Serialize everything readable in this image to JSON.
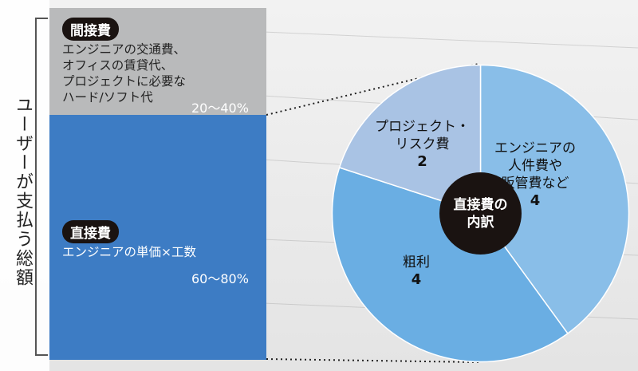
{
  "y_axis_label": "ユーザーが支払う総額",
  "stacked_bar": {
    "segments": [
      {
        "name": "間接費",
        "description": [
          "エンジニアの交通費、",
          "オフィスの賃貸代、",
          "プロジェクトに必要な",
          "ハード/ソフト代"
        ],
        "range_label": "20〜40%",
        "range": [
          20,
          40
        ]
      },
      {
        "name": "直接費",
        "description": [
          "エンジニアの単価×工数"
        ],
        "range_label": "60〜80%",
        "range": [
          60,
          80
        ]
      }
    ]
  },
  "chart_data": {
    "type": "pie",
    "center_label": [
      "直接費の",
      "内訳"
    ],
    "slices": [
      {
        "label": [
          "エンジニアの",
          "人件費や",
          "販管費など"
        ],
        "value": 4,
        "value_label": "4",
        "color": "#89bee8"
      },
      {
        "label": [
          "粗利"
        ],
        "value": 4,
        "value_label": "4",
        "color": "#6aaee3"
      },
      {
        "label": [
          "プロジェクト・",
          "リスク費"
        ],
        "value": 2,
        "value_label": "2",
        "color": "#a9c3e4"
      }
    ]
  },
  "colors": {
    "indirect": "#b9babb",
    "direct": "#3d7cc4",
    "badge": "#1a1311"
  }
}
